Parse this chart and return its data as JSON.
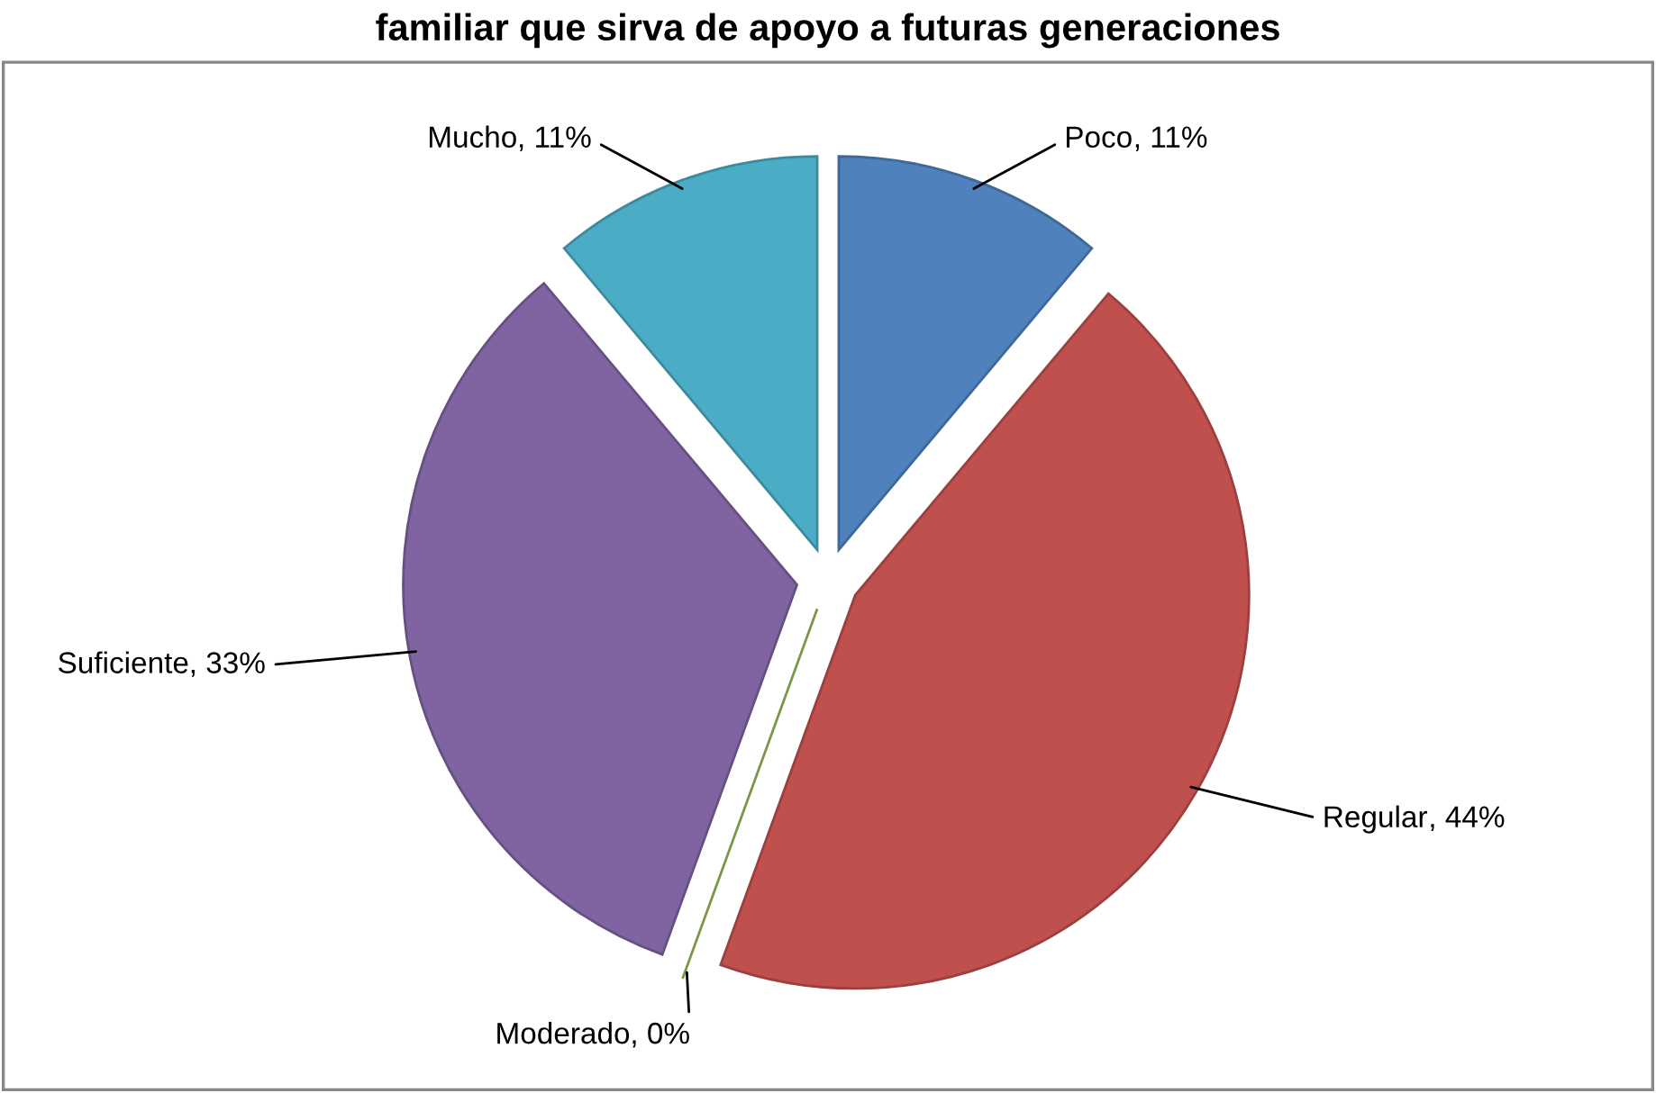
{
  "chart_data": {
    "type": "pie",
    "title": "familiar que sirva de apoyo a futuras generaciones",
    "categories": [
      "Poco",
      "Regular",
      "Moderado",
      "Suficiente",
      "Mucho"
    ],
    "values": [
      11,
      44,
      0,
      33,
      11
    ],
    "value_labels": [
      ", 11%",
      ", 44%",
      ", 0%",
      ", 33%",
      ", 11%"
    ],
    "data_labels": true,
    "colors": [
      "#4f81bd",
      "#c0504d",
      "#9bbb59",
      "#8064a2",
      "#4bacc6"
    ]
  }
}
